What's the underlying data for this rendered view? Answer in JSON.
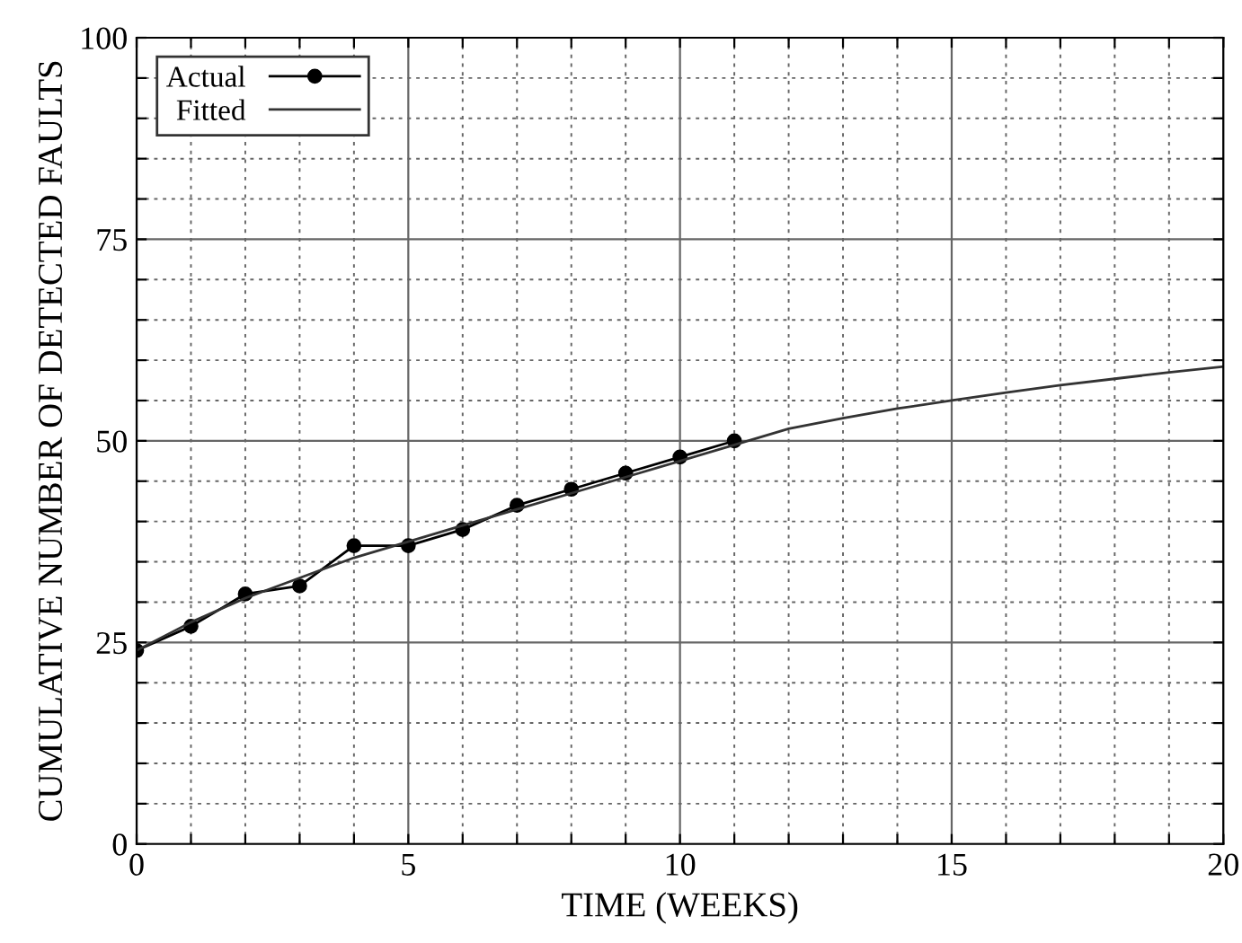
{
  "chart_data": {
    "type": "line",
    "xlabel": "TIME (WEEKS)",
    "ylabel": "CUMULATIVE NUMBER OF DETECTED FAULTS",
    "xlim": [
      0,
      20
    ],
    "ylim": [
      0,
      100
    ],
    "xticks": [
      0,
      {
        "value": 1,
        "label": null
      },
      {
        "value": 2,
        "label": null
      },
      {
        "value": 3,
        "label": null
      },
      {
        "value": 4,
        "label": null
      },
      5,
      {
        "value": 6,
        "label": null
      },
      {
        "value": 7,
        "label": null
      },
      {
        "value": 8,
        "label": null
      },
      {
        "value": 9,
        "label": null
      },
      10,
      {
        "value": 11,
        "label": null
      },
      {
        "value": 12,
        "label": null
      },
      {
        "value": 13,
        "label": null
      },
      {
        "value": 14,
        "label": null
      },
      15,
      {
        "value": 16,
        "label": null
      },
      {
        "value": 17,
        "label": null
      },
      {
        "value": 18,
        "label": null
      },
      {
        "value": 19,
        "label": null
      },
      20
    ],
    "yticks": [
      0,
      {
        "value": 5,
        "label": null
      },
      {
        "value": 10,
        "label": null
      },
      {
        "value": 15,
        "label": null
      },
      {
        "value": 20,
        "label": null
      },
      25,
      {
        "value": 30,
        "label": null
      },
      {
        "value": 35,
        "label": null
      },
      {
        "value": 40,
        "label": null
      },
      {
        "value": 45,
        "label": null
      },
      50,
      {
        "value": 55,
        "label": null
      },
      {
        "value": 60,
        "label": null
      },
      {
        "value": 65,
        "label": null
      },
      {
        "value": 70,
        "label": null
      },
      75,
      {
        "value": 80,
        "label": null
      },
      {
        "value": 85,
        "label": null
      },
      {
        "value": 90,
        "label": null
      },
      {
        "value": 95,
        "label": null
      },
      100
    ],
    "grid": true,
    "legend": "top left",
    "series": [
      {
        "name": "Actual",
        "color": "#000000",
        "marker": "circle",
        "x": [
          0,
          1,
          2,
          3,
          4,
          5,
          6,
          7,
          8,
          9,
          10,
          11
        ],
        "values": [
          24,
          27,
          31,
          32,
          37,
          37,
          39,
          42,
          44,
          46,
          48,
          50
        ]
      },
      {
        "name": "Fitted",
        "color": "#333333",
        "marker": "none",
        "x": [
          0,
          1,
          2,
          3,
          4,
          5,
          6,
          7,
          8,
          9,
          10,
          11,
          12,
          13,
          14,
          15,
          16,
          17,
          18,
          19,
          20
        ],
        "values": [
          24,
          27.5,
          30.5,
          33,
          35.5,
          37.5,
          39.5,
          41.5,
          43.5,
          45.5,
          47.5,
          49.5,
          51.5,
          52.8,
          54,
          55,
          56,
          56.9,
          57.7,
          58.5,
          59.2
        ]
      }
    ]
  }
}
